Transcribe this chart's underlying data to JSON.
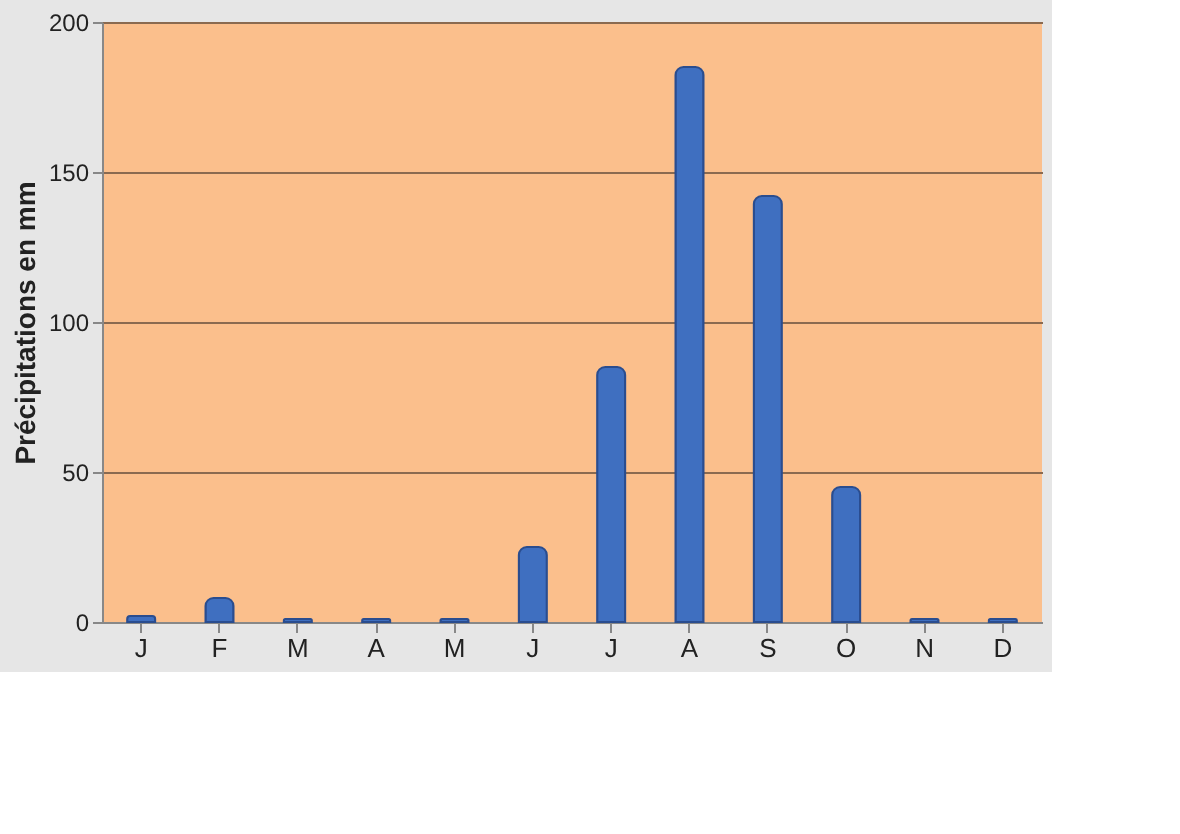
{
  "chart_data": {
    "type": "bar",
    "ylabel": "Précipitations en mm",
    "categories": [
      "J",
      "F",
      "M",
      "A",
      "M",
      "J",
      "J",
      "A",
      "S",
      "O",
      "N",
      "D"
    ],
    "values": [
      2,
      8,
      1,
      1,
      1,
      25,
      85,
      185,
      142,
      45,
      1,
      1
    ],
    "color": "#3f6fc0",
    "ylim": [
      0,
      200
    ],
    "yticks": [
      0,
      50,
      100,
      150,
      200
    ],
    "grid": "y"
  }
}
